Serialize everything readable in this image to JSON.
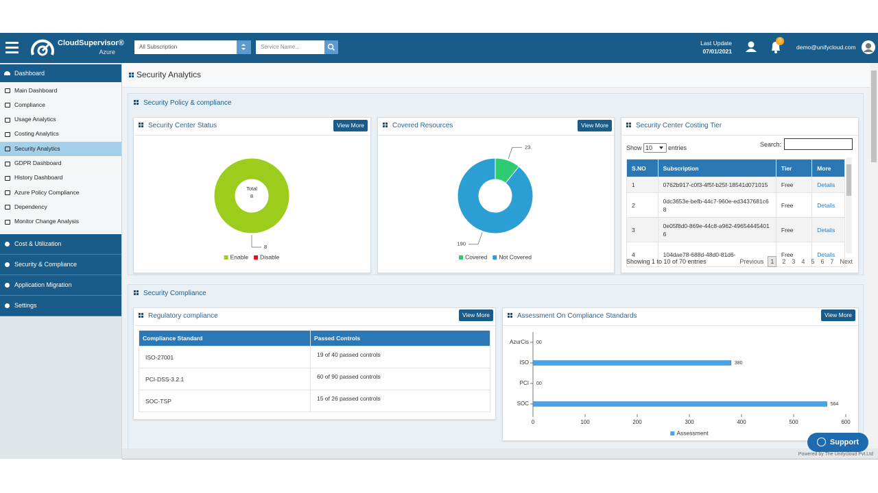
{
  "header": {
    "brand": "CloudSupervisor®",
    "edition": "Azure",
    "subscription": "All Subscription",
    "service_placeholder": "Service Name...",
    "last_update_label": "Last Update",
    "last_update": "07/01/2021",
    "notifications": "0",
    "user": "demo@unifycloud.com"
  },
  "sidebar": {
    "dashboard": "Dashboard",
    "items": [
      "Main Dashboard",
      "Compliance",
      "Usage Analytics",
      "Costing Analytics",
      "Security Analytics",
      "GDPR Dashboard",
      "History Dashboard",
      "Azure Policy Compliance",
      "Dependency",
      "Monitor Change Analysis"
    ],
    "sections": [
      "Cost & Utilization",
      "Security & Compliance",
      "Application Migration",
      "Settings"
    ]
  },
  "page_title": "Security Analytics",
  "view_more": "View More",
  "policy_section": {
    "title": "Security Policy & compliance"
  },
  "costing_tier": {
    "title": "Security Center Costing Tier",
    "show": "Show",
    "page_size": "10",
    "entries": "entries",
    "search": "Search:",
    "columns": [
      "S.NO",
      "Subscription",
      "Tier",
      "More"
    ],
    "rows": [
      [
        "1",
        "0762b917-c0f3-4f5f-b25f-18541d071015",
        "Free",
        "Details"
      ],
      [
        "2",
        "0dc3653e-befb-44c7-960e-ed3437681c68",
        "Free",
        "Details"
      ],
      [
        "3",
        "0e05f8d0-869e-44c8-a962-496544454016",
        "Free",
        "Details"
      ],
      [
        "4",
        "104dae78-688d-48d0-81d6-",
        "Free",
        "Details"
      ]
    ],
    "info": "Showing 1 to 10 of 70 entries",
    "previous": "Previous",
    "pages": [
      "1",
      "2",
      "3",
      "4",
      "5",
      "6",
      "7"
    ],
    "next": "Next"
  },
  "compliance_section": {
    "title": "Security Compliance"
  },
  "regulatory": {
    "title": "Regulatory compliance",
    "columns": [
      "Compliance Standard",
      "Passed Controls"
    ],
    "rows": [
      [
        "ISO-27001",
        "19 of 40 passed controls"
      ],
      [
        "PCI-DSS-3.2.1",
        "60 of 90 passed controls"
      ],
      [
        "SOC-TSP",
        "15 of 26 passed controls"
      ]
    ]
  },
  "footer": "Powered by The Unifycloud Pvt.Ltd",
  "support": "Support",
  "chart_data": [
    {
      "type": "donut",
      "title": "Security Center Status",
      "categories": [
        "Enable",
        "Disable"
      ],
      "values": [
        8,
        0
      ],
      "colors": [
        "#9ccc1c",
        "#e3121b"
      ],
      "center_title": "Total",
      "center_value": 8
    },
    {
      "type": "donut",
      "title": "Covered Resources",
      "categories": [
        "Covered",
        "Not Covered"
      ],
      "values": [
        23,
        190
      ],
      "colors": [
        "#2ecc71",
        "#2b9fd4"
      ]
    },
    {
      "type": "hbar",
      "title": "Assessment On Compliance Standards",
      "categories": [
        "AzurCis",
        "ISO",
        "PCI",
        "SOC"
      ],
      "series": [
        {
          "name": "Assessment",
          "color": "#4aa3e6",
          "values": [
            0,
            380,
            0,
            564
          ],
          "value_labels": [
            "00",
            "380",
            "00",
            "564"
          ]
        }
      ],
      "xlim": [
        0,
        600
      ],
      "xticks": [
        0,
        100,
        200,
        300,
        400,
        500,
        600
      ]
    }
  ]
}
